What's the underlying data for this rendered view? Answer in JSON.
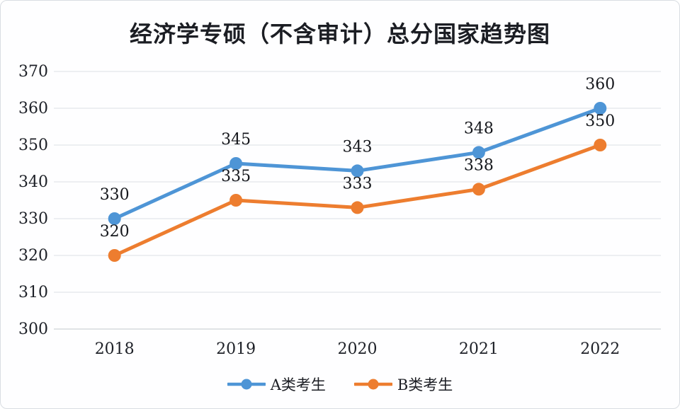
{
  "chart_data": {
    "type": "line",
    "title": "经济学专硕（不含审计）总分国家趋势图",
    "categories": [
      "2018",
      "2019",
      "2020",
      "2021",
      "2022"
    ],
    "series": [
      {
        "name": "A类考生",
        "color": "#4E95D6",
        "values": [
          330,
          345,
          343,
          348,
          360
        ]
      },
      {
        "name": "B类考生",
        "color": "#ED7D2F",
        "values": [
          320,
          335,
          333,
          338,
          350
        ]
      }
    ],
    "ylim": [
      300,
      370
    ],
    "yticks": [
      300,
      310,
      320,
      330,
      340,
      350,
      360,
      370
    ],
    "xlabel": "",
    "ylabel": "",
    "grid": "horizontal",
    "data_labels": true,
    "legend_position": "bottom"
  },
  "style_colors": {
    "background": "#fefeff",
    "frame_border": "#d9dde2",
    "gridline": "#dce0e6",
    "axis_line": "#c3c8ce",
    "tick_text": "#1d2027",
    "data_label_text": "#15171c",
    "title_text": "#1b1d23"
  }
}
